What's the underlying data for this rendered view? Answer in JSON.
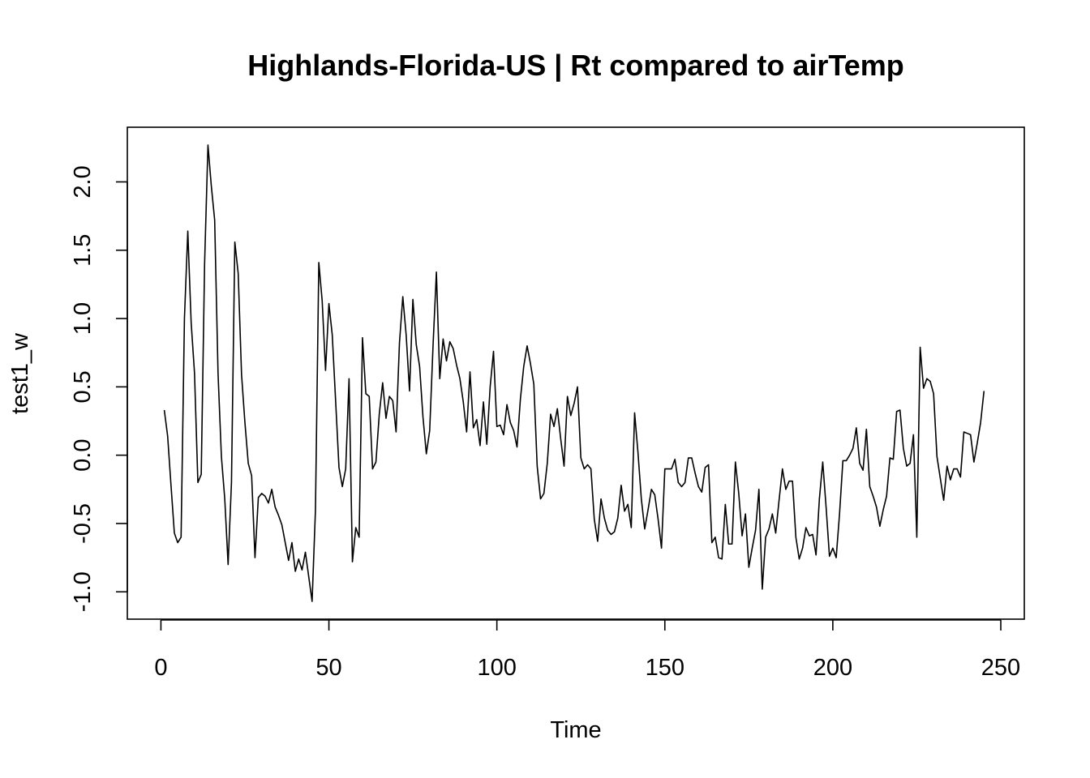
{
  "chart_data": {
    "type": "line",
    "title": "Highlands-Florida-US | Rt compared to airTemp",
    "xlabel": "Time",
    "ylabel": "test1_w",
    "xlim": [
      -10,
      257
    ],
    "ylim": [
      -1.2,
      2.4
    ],
    "x_ticks": [
      0,
      50,
      100,
      150,
      200,
      250
    ],
    "x_tick_labels": [
      "0",
      "50",
      "100",
      "150",
      "200",
      "250"
    ],
    "y_ticks": [
      -1.0,
      -0.5,
      0.0,
      0.5,
      1.0,
      1.5,
      2.0
    ],
    "y_tick_labels": [
      "-1.0",
      "-0.5",
      "0.0",
      "0.5",
      "1.0",
      "1.5",
      "2.0"
    ],
    "grid": false,
    "legend": "none",
    "line_color": "#000000",
    "series": [
      {
        "x_start": 1,
        "values": [
          0.33,
          0.14,
          -0.22,
          -0.57,
          -0.64,
          -0.6,
          1.0,
          1.64,
          0.97,
          0.6,
          -0.2,
          -0.14,
          1.4,
          2.27,
          1.97,
          1.72,
          0.6,
          -0.01,
          -0.32,
          -0.8,
          -0.2,
          1.56,
          1.33,
          0.59,
          0.24,
          -0.06,
          -0.15,
          -0.75,
          -0.31,
          -0.28,
          -0.3,
          -0.35,
          -0.25,
          -0.38,
          -0.44,
          -0.51,
          -0.64,
          -0.77,
          -0.64,
          -0.85,
          -0.76,
          -0.84,
          -0.71,
          -0.89,
          -1.07,
          -0.4,
          1.41,
          1.13,
          0.62,
          1.11,
          0.88,
          0.4,
          -0.09,
          -0.23,
          -0.1,
          0.56,
          -0.78,
          -0.53,
          -0.6,
          0.86,
          0.45,
          0.43,
          -0.1,
          -0.05,
          0.3,
          0.53,
          0.27,
          0.43,
          0.4,
          0.17,
          0.82,
          1.16,
          0.88,
          0.47,
          1.14,
          0.81,
          0.65,
          0.28,
          0.01,
          0.18,
          0.8,
          1.34,
          0.56,
          0.85,
          0.69,
          0.83,
          0.78,
          0.66,
          0.56,
          0.39,
          0.17,
          0.61,
          0.2,
          0.26,
          0.07,
          0.39,
          0.08,
          0.5,
          0.76,
          0.21,
          0.22,
          0.15,
          0.37,
          0.24,
          0.18,
          0.06,
          0.41,
          0.65,
          0.8,
          0.67,
          0.52,
          -0.08,
          -0.32,
          -0.28,
          -0.06,
          0.3,
          0.21,
          0.34,
          0.12,
          -0.08,
          0.43,
          0.29,
          0.38,
          0.5,
          -0.02,
          -0.1,
          -0.07,
          -0.1,
          -0.47,
          -0.63,
          -0.32,
          -0.46,
          -0.55,
          -0.58,
          -0.56,
          -0.46,
          -0.22,
          -0.41,
          -0.36,
          -0.53,
          0.31,
          0.02,
          -0.32,
          -0.54,
          -0.4,
          -0.25,
          -0.29,
          -0.47,
          -0.68,
          -0.1,
          -0.1,
          -0.1,
          -0.03,
          -0.2,
          -0.23,
          -0.2,
          -0.02,
          -0.02,
          -0.13,
          -0.23,
          -0.27,
          -0.09,
          -0.07,
          -0.64,
          -0.6,
          -0.75,
          -0.76,
          -0.36,
          -0.65,
          -0.65,
          -0.05,
          -0.28,
          -0.59,
          -0.43,
          -0.82,
          -0.68,
          -0.55,
          -0.25,
          -0.98,
          -0.6,
          -0.54,
          -0.43,
          -0.57,
          -0.33,
          -0.1,
          -0.25,
          -0.19,
          -0.19,
          -0.6,
          -0.76,
          -0.68,
          -0.53,
          -0.59,
          -0.58,
          -0.73,
          -0.32,
          -0.05,
          -0.38,
          -0.74,
          -0.68,
          -0.75,
          -0.43,
          -0.04,
          -0.04,
          0.0,
          0.05,
          0.2,
          -0.06,
          -0.11,
          0.19,
          -0.23,
          -0.3,
          -0.38,
          -0.52,
          -0.4,
          -0.3,
          -0.02,
          -0.03,
          0.32,
          0.33,
          0.05,
          -0.08,
          -0.06,
          0.15,
          -0.6,
          0.79,
          0.49,
          0.56,
          0.54,
          0.45,
          -0.01,
          -0.17,
          -0.33,
          -0.08,
          -0.18,
          -0.1,
          -0.1,
          -0.16,
          0.17,
          0.16,
          0.15,
          -0.05,
          0.09,
          0.24,
          0.47
        ]
      }
    ]
  }
}
